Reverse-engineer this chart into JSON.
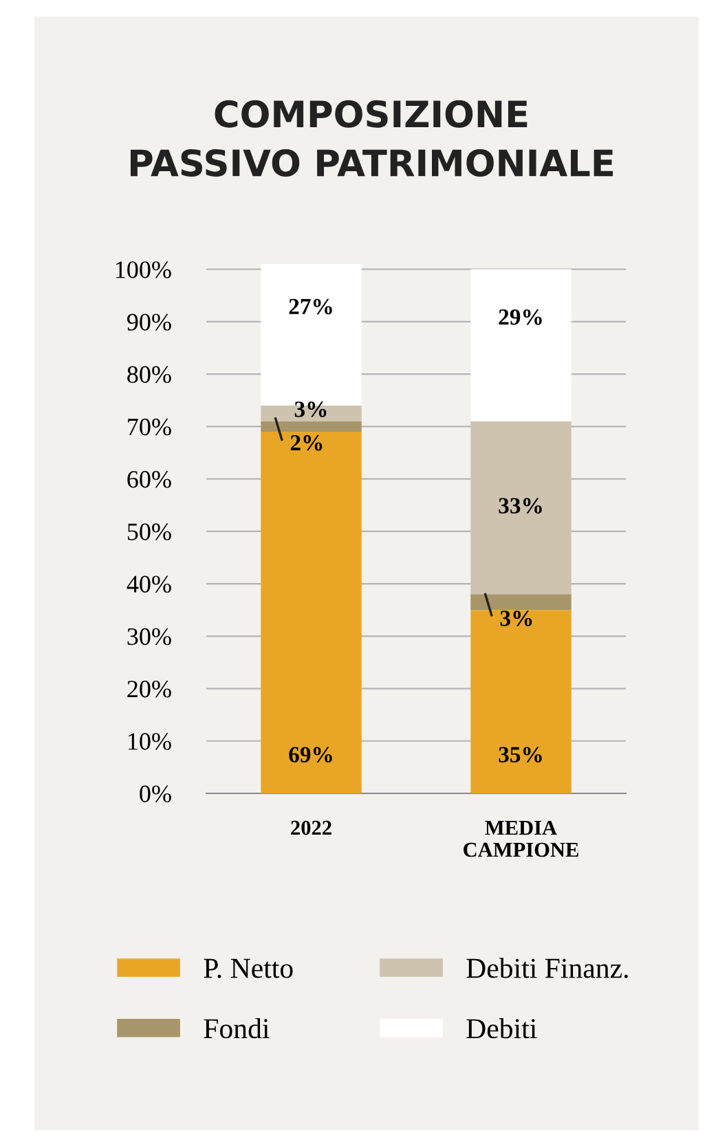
{
  "chart_data": {
    "type": "bar",
    "title": "COMPOSIZIONE\nPASSIVO PATRIMONIALE",
    "categories": [
      "2022",
      "MEDIA\nCAMPIONE"
    ],
    "stacked": true,
    "series": [
      {
        "name": "P. Netto",
        "color": "#e9a626",
        "values": [
          69,
          35
        ],
        "value_labels": [
          "69%",
          "35%"
        ]
      },
      {
        "name": "Fondi",
        "color": "#a8966a",
        "values": [
          2,
          3
        ],
        "value_labels": [
          "2%",
          "3%"
        ]
      },
      {
        "name": "Debiti Finanz.",
        "color": "#cdc3ae",
        "values": [
          3,
          33
        ],
        "value_labels": [
          "3%",
          "33%"
        ]
      },
      {
        "name": "Debiti",
        "color": "#ffffff",
        "values": [
          27,
          29
        ],
        "value_labels": [
          "27%",
          "29%"
        ]
      }
    ],
    "ylim": [
      0,
      101
    ],
    "yticks": [
      {
        "value": 0,
        "label": "0%"
      },
      {
        "value": 10,
        "label": "10%"
      },
      {
        "value": 20,
        "label": "20%"
      },
      {
        "value": 30,
        "label": "30%"
      },
      {
        "value": 40,
        "label": "40%"
      },
      {
        "value": 50,
        "label": "50%"
      },
      {
        "value": 60,
        "label": "60%"
      },
      {
        "value": 70,
        "label": "70%"
      },
      {
        "value": 80,
        "label": "80%"
      },
      {
        "value": 90,
        "label": "90%"
      },
      {
        "value": 100,
        "label": "100%"
      }
    ],
    "grid": "y",
    "legend": "bottom"
  }
}
